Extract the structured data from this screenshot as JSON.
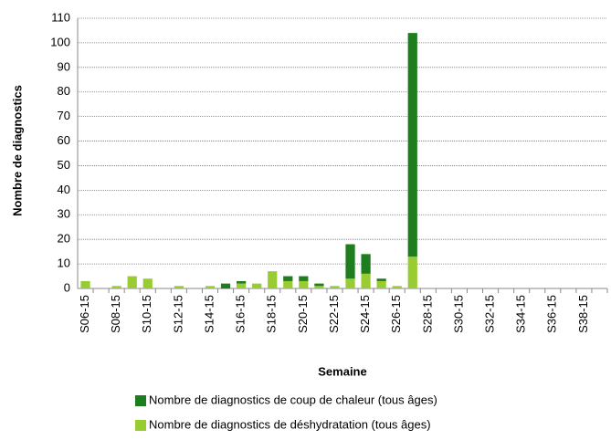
{
  "chart_data": {
    "type": "stacked-bar",
    "x_label": "Semaine",
    "y_label": "Nombre de diagnostics",
    "categories": [
      "S06-15",
      null,
      "S08-15",
      null,
      "S10-15",
      null,
      "S12-15",
      null,
      "S14-15",
      null,
      "S16-15",
      null,
      "S18-15",
      null,
      "S20-15",
      null,
      "S22-15",
      null,
      "S24-15",
      null,
      "S26-15",
      null,
      "S28-15",
      null,
      "S30-15",
      null,
      "S32-15",
      null,
      "S34-15",
      null,
      "S36-15",
      null,
      "S38-15",
      null
    ],
    "series": [
      {
        "name": "Nombre de diagnostics de coup de chaleur (tous âges)",
        "color": "#1e7d1e",
        "values": [
          0,
          0,
          0,
          0,
          0,
          0,
          0,
          0,
          0,
          2,
          1,
          0,
          0,
          2,
          2,
          1,
          0,
          14,
          8,
          1,
          0,
          91,
          0,
          0,
          0,
          0,
          0,
          0,
          0,
          0,
          0,
          0,
          0,
          0
        ]
      },
      {
        "name": "Nombre de diagnostics de déshydratation (tous âges)",
        "color": "#99cc33",
        "values": [
          3,
          0,
          1,
          5,
          4,
          0,
          1,
          0,
          1,
          0,
          2,
          2,
          7,
          3,
          3,
          1,
          1,
          4,
          6,
          3,
          1,
          13,
          0,
          0,
          0,
          0,
          0,
          0,
          0,
          0,
          0,
          0,
          0,
          0
        ]
      }
    ],
    "ylim": [
      0,
      110
    ],
    "yticks": [
      0,
      10,
      20,
      30,
      40,
      50,
      60,
      70,
      80,
      90,
      100,
      110
    ],
    "grid": true
  }
}
